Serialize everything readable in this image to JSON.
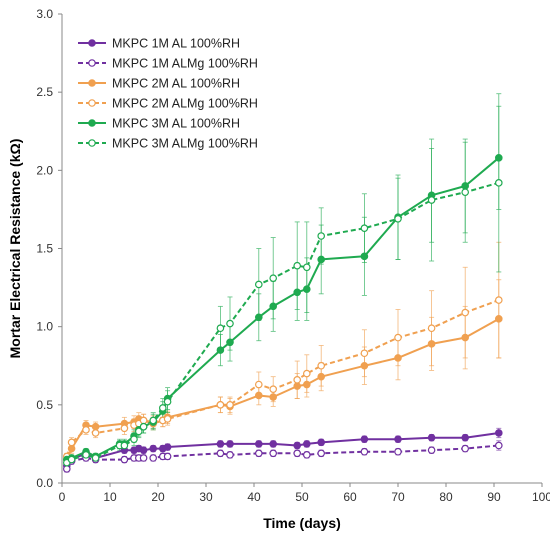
{
  "chart_data": {
    "type": "line",
    "xlabel": "Time (days)",
    "ylabel": "Mortar Electrical Resistance (kΩ)",
    "xlim": [
      0,
      100
    ],
    "ylim": [
      0,
      3.0
    ],
    "xticks": [
      "0",
      "10",
      "20",
      "30",
      "40",
      "50",
      "60",
      "70",
      "80",
      "90",
      "100"
    ],
    "yticks": [
      "0.0",
      "0.5",
      "1.0",
      "1.5",
      "2.0",
      "2.5",
      "3.0"
    ],
    "grid": false,
    "legend_position": "top-left",
    "series": [
      {
        "name": "MKPC 1M AL 100%RH",
        "color": "#7030a0",
        "dashed": false,
        "filled": true,
        "x": [
          1,
          2,
          5,
          7,
          13,
          15,
          16,
          17,
          19,
          21,
          22,
          33,
          35,
          41,
          44,
          49,
          51,
          54,
          63,
          70,
          77,
          84,
          91
        ],
        "y": [
          0.11,
          0.15,
          0.19,
          0.16,
          0.21,
          0.21,
          0.22,
          0.21,
          0.22,
          0.22,
          0.23,
          0.25,
          0.25,
          0.25,
          0.25,
          0.24,
          0.25,
          0.26,
          0.28,
          0.28,
          0.29,
          0.29,
          0.32
        ],
        "err": [
          0.02,
          0.02,
          0.02,
          0.02,
          0.02,
          0.02,
          0.02,
          0.02,
          0.02,
          0.02,
          0.02,
          0.02,
          0.02,
          0.02,
          0.02,
          0.02,
          0.02,
          0.02,
          0.02,
          0.02,
          0.02,
          0.02,
          0.03
        ]
      },
      {
        "name": "MKPC 1M ALMg 100%RH",
        "color": "#7030a0",
        "dashed": true,
        "filled": false,
        "x": [
          1,
          2,
          5,
          7,
          13,
          15,
          16,
          17,
          19,
          21,
          22,
          33,
          35,
          41,
          44,
          49,
          51,
          54,
          63,
          70,
          77,
          84,
          91
        ],
        "y": [
          0.09,
          0.14,
          0.16,
          0.15,
          0.15,
          0.16,
          0.16,
          0.16,
          0.16,
          0.17,
          0.17,
          0.19,
          0.18,
          0.19,
          0.19,
          0.19,
          0.18,
          0.19,
          0.2,
          0.2,
          0.21,
          0.22,
          0.24
        ],
        "err": [
          0.02,
          0.02,
          0.02,
          0.02,
          0.02,
          0.02,
          0.02,
          0.02,
          0.02,
          0.02,
          0.02,
          0.02,
          0.02,
          0.02,
          0.02,
          0.02,
          0.02,
          0.02,
          0.02,
          0.02,
          0.02,
          0.02,
          0.03
        ]
      },
      {
        "name": "MKPC 2M AL 100%RH",
        "color": "#f0a050",
        "dashed": false,
        "filled": true,
        "x": [
          1,
          2,
          5,
          7,
          13,
          15,
          16,
          17,
          19,
          21,
          22,
          33,
          35,
          41,
          44,
          49,
          51,
          54,
          63,
          70,
          77,
          84,
          91
        ],
        "y": [
          0.15,
          0.22,
          0.37,
          0.36,
          0.38,
          0.39,
          0.41,
          0.4,
          0.38,
          0.4,
          0.42,
          0.5,
          0.49,
          0.56,
          0.55,
          0.62,
          0.63,
          0.68,
          0.75,
          0.8,
          0.89,
          0.93,
          1.05
        ],
        "err": [
          0.02,
          0.03,
          0.03,
          0.03,
          0.04,
          0.04,
          0.04,
          0.04,
          0.04,
          0.04,
          0.04,
          0.05,
          0.05,
          0.06,
          0.06,
          0.08,
          0.08,
          0.09,
          0.12,
          0.14,
          0.17,
          0.2,
          0.25
        ]
      },
      {
        "name": "MKPC 2M ALMg 100%RH",
        "color": "#f0a050",
        "dashed": true,
        "filled": false,
        "x": [
          1,
          2,
          5,
          7,
          13,
          15,
          16,
          17,
          19,
          21,
          22,
          33,
          35,
          41,
          44,
          49,
          51,
          54,
          63,
          70,
          77,
          84,
          91
        ],
        "y": [
          0.17,
          0.26,
          0.34,
          0.32,
          0.35,
          0.37,
          0.38,
          0.4,
          0.39,
          0.4,
          0.41,
          0.5,
          0.5,
          0.63,
          0.6,
          0.66,
          0.7,
          0.75,
          0.83,
          0.93,
          0.99,
          1.09,
          1.17
        ],
        "err": [
          0.02,
          0.03,
          0.03,
          0.03,
          0.04,
          0.04,
          0.04,
          0.04,
          0.04,
          0.04,
          0.04,
          0.05,
          0.05,
          0.08,
          0.08,
          0.12,
          0.12,
          0.13,
          0.15,
          0.18,
          0.24,
          0.29,
          0.37
        ]
      },
      {
        "name": "MKPC 3M AL 100%RH",
        "color": "#1faa50",
        "dashed": false,
        "filled": true,
        "x": [
          1,
          2,
          5,
          7,
          12,
          13,
          15,
          16,
          17,
          19,
          21,
          22,
          33,
          35,
          41,
          44,
          49,
          51,
          54,
          63,
          70,
          77,
          84,
          91
        ],
        "y": [
          0.15,
          0.16,
          0.2,
          0.17,
          0.25,
          0.25,
          0.3,
          0.34,
          0.36,
          0.39,
          0.46,
          0.54,
          0.85,
          0.9,
          1.06,
          1.13,
          1.22,
          1.24,
          1.43,
          1.45,
          1.7,
          1.84,
          1.9,
          2.08
        ],
        "err": [
          0.02,
          0.02,
          0.02,
          0.02,
          0.03,
          0.03,
          0.04,
          0.04,
          0.04,
          0.05,
          0.06,
          0.07,
          0.1,
          0.12,
          0.15,
          0.16,
          0.18,
          0.2,
          0.22,
          0.25,
          0.27,
          0.3,
          0.3,
          0.33
        ]
      },
      {
        "name": "MKPC 3M ALMg 100%RH",
        "color": "#1faa50",
        "dashed": true,
        "filled": false,
        "x": [
          1,
          2,
          5,
          7,
          12,
          13,
          15,
          16,
          17,
          19,
          21,
          22,
          33,
          35,
          41,
          44,
          49,
          51,
          54,
          63,
          70,
          77,
          84,
          91
        ],
        "y": [
          0.13,
          0.15,
          0.18,
          0.16,
          0.24,
          0.24,
          0.28,
          0.33,
          0.36,
          0.4,
          0.48,
          0.52,
          0.99,
          1.02,
          1.27,
          1.31,
          1.39,
          1.38,
          1.58,
          1.63,
          1.69,
          1.81,
          1.86,
          1.92
        ],
        "err": [
          0.02,
          0.02,
          0.02,
          0.02,
          0.03,
          0.03,
          0.04,
          0.04,
          0.04,
          0.05,
          0.06,
          0.07,
          0.14,
          0.17,
          0.23,
          0.26,
          0.28,
          0.29,
          0.18,
          0.22,
          0.26,
          0.39,
          0.32,
          0.57
        ]
      }
    ]
  }
}
